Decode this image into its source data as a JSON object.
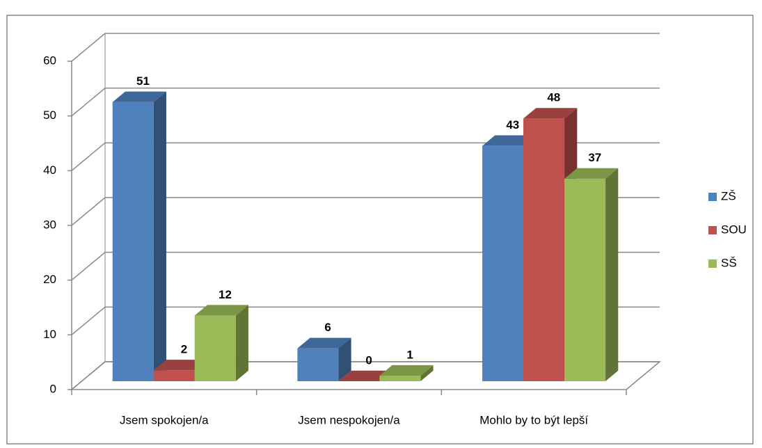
{
  "chart_data": {
    "type": "bar3d",
    "categories": [
      "Jsem spokojen/a",
      "Jsem nespokojen/a",
      "Mohlo by to být lepší"
    ],
    "series": [
      {
        "name": "ZŠ",
        "color": "#4f81bd",
        "values": [
          51,
          6,
          43
        ]
      },
      {
        "name": "SOU",
        "color": "#c0504d",
        "values": [
          2,
          0,
          48
        ]
      },
      {
        "name": "SŠ",
        "color": "#9bbb59",
        "values": [
          12,
          1,
          37
        ]
      }
    ],
    "ylim": [
      0,
      60
    ],
    "yticks": [
      0,
      10,
      20,
      30,
      40,
      50,
      60
    ],
    "grid": true,
    "legend": "right"
  }
}
